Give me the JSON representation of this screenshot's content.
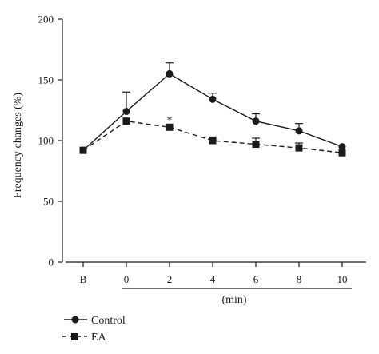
{
  "chart_data": {
    "type": "line",
    "ylabel": "Frequency changes (%)",
    "xlabel": "(min)",
    "ylim": [
      0,
      200
    ],
    "y_ticks": [
      0,
      50,
      100,
      150,
      200
    ],
    "categories": [
      "B",
      "0",
      "2",
      "4",
      "6",
      "8",
      "10"
    ],
    "series": [
      {
        "name": "Control",
        "marker": "circle",
        "line_style": "solid",
        "values": [
          92,
          124,
          155,
          134,
          116,
          108,
          95
        ],
        "error_upper": [
          92,
          140,
          164,
          139,
          122,
          114,
          95
        ]
      },
      {
        "name": "EA",
        "marker": "square",
        "line_style": "dashed",
        "values": [
          92,
          116,
          111,
          100,
          97,
          94,
          90
        ],
        "error_upper": [
          92,
          116,
          111,
          103,
          102,
          98,
          90
        ]
      }
    ],
    "annotations": [
      {
        "text": "*",
        "category": "2",
        "y": 118
      }
    ],
    "grid": false,
    "legend": "bottom-left",
    "colors": {
      "line": "#1a1a1a",
      "background": "#ffffff"
    }
  }
}
